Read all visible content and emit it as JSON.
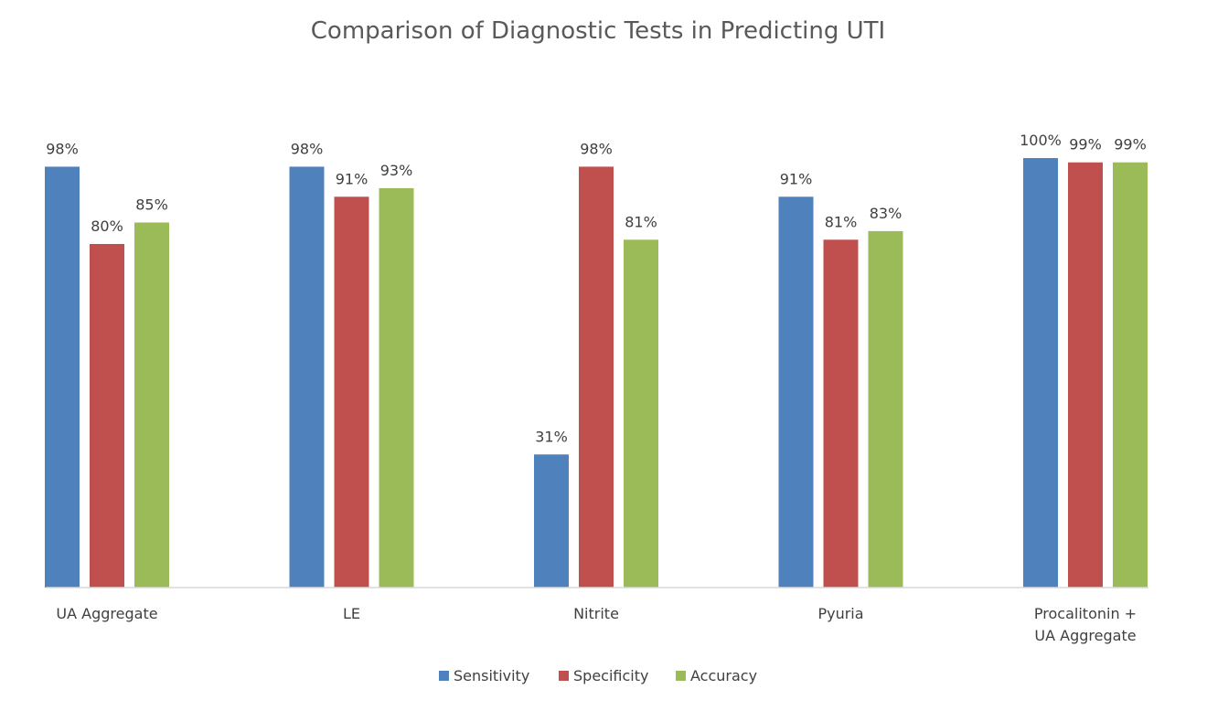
{
  "chart_data": {
    "type": "bar",
    "title": "Comparison of Diagnostic Tests in Predicting UTI",
    "xlabel": "",
    "ylabel": "",
    "ylim": [
      0,
      100
    ],
    "grid": false,
    "legend_position": "bottom",
    "categories": [
      [
        "UA Aggregate"
      ],
      [
        "LE"
      ],
      [
        "Nitrite"
      ],
      [
        "Pyuria"
      ],
      [
        "Procalitonin +",
        "UA Aggregate"
      ]
    ],
    "series": [
      {
        "name": "Sensitivity",
        "color": "#4F81BD",
        "values": [
          98,
          98,
          31,
          91,
          100
        ],
        "labels": [
          "98%",
          "98%",
          "31%",
          "91%",
          "100%"
        ]
      },
      {
        "name": "Specificity",
        "color": "#C0504D",
        "values": [
          80,
          91,
          98,
          81,
          99
        ],
        "labels": [
          "80%",
          "91%",
          "98%",
          "81%",
          "99%"
        ]
      },
      {
        "name": "Accuracy",
        "color": "#9BBB59",
        "values": [
          85,
          93,
          81,
          83,
          99
        ],
        "labels": [
          "85%",
          "93%",
          "81%",
          "83%",
          "99%"
        ]
      }
    ]
  }
}
